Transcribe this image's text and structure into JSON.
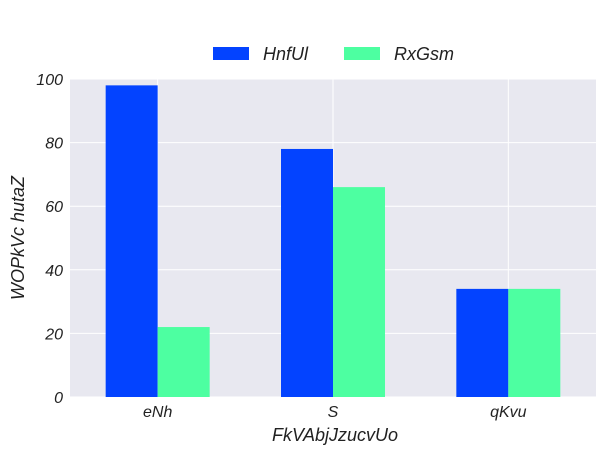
{
  "chart_data": {
    "type": "bar",
    "title": "",
    "xlabel": "FkVAbjJzucvUo",
    "ylabel": "WOPkVc hutaZ",
    "categories": [
      "eNh",
      "S",
      "qKvu"
    ],
    "series": [
      {
        "name": "HnfUl",
        "color": "#0343ff",
        "values": [
          98,
          78,
          34
        ]
      },
      {
        "name": "RxGsm",
        "color": "#4dffa1",
        "values": [
          22,
          66,
          34
        ]
      }
    ],
    "ylim": [
      0,
      100
    ],
    "yticks": [
      0,
      20,
      40,
      60,
      80,
      100
    ],
    "grid": true,
    "legend_position": "top-center",
    "plot_background": "#e8e8f0",
    "grid_color": "#ffffff"
  }
}
